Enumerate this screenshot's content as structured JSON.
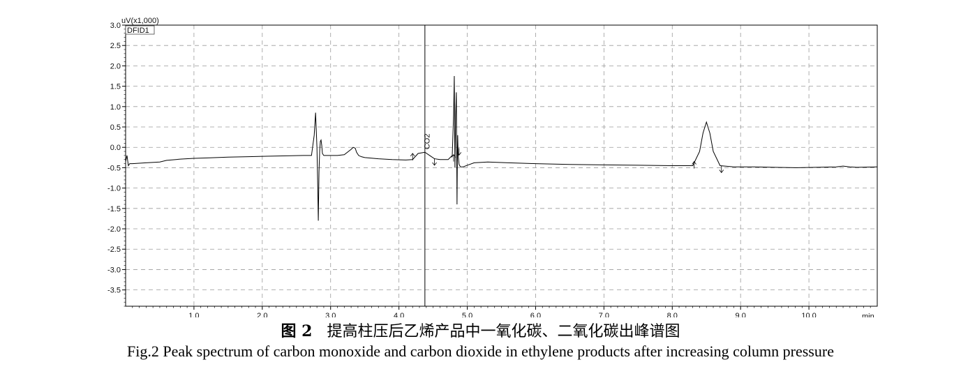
{
  "chart_data": {
    "type": "line",
    "y_unit_label": "uV(x1,000)",
    "x_unit_label": "min",
    "channel_label": "DFID1",
    "xlim": [
      0,
      11
    ],
    "ylim": [
      -3.9,
      3.0
    ],
    "x_ticks": [
      1.0,
      2.0,
      3.0,
      4.0,
      5.0,
      6.0,
      7.0,
      8.0,
      9.0,
      10.0
    ],
    "x_tick_labels": [
      "1.0",
      "2.0",
      "3.0",
      "4.0",
      "5.0",
      "6.0",
      "7.0",
      "8.0",
      "9.0",
      "10.0"
    ],
    "y_ticks": [
      3.0,
      2.5,
      2.0,
      1.5,
      1.0,
      0.5,
      0.0,
      -0.5,
      -1.0,
      -1.5,
      -2.0,
      -2.5,
      -3.0,
      -3.5
    ],
    "y_tick_labels": [
      "3.0",
      "2.5",
      "2.0",
      "1.5",
      "1.0",
      "0.5",
      "0.0",
      "-0.5",
      "-1.0",
      "-1.5",
      "-2.0",
      "-2.5",
      "-3.0",
      "-3.5"
    ],
    "grid": true,
    "vertical_marker_x": 4.38,
    "annotations": [
      {
        "text": "CO2",
        "x": 4.45,
        "y": -0.05
      }
    ],
    "integration_markers": [
      {
        "x": 4.2,
        "y": -0.32,
        "dir": "up"
      },
      {
        "x": 4.52,
        "y": -0.27,
        "dir": "down"
      },
      {
        "x": 4.8,
        "y": -0.35,
        "dir": "up"
      },
      {
        "x": 4.88,
        "y": -0.02,
        "dir": "down"
      },
      {
        "x": 8.32,
        "y": -0.52,
        "dir": "up"
      },
      {
        "x": 8.72,
        "y": -0.45,
        "dir": "down"
      }
    ],
    "series": [
      {
        "values_x": [
          0.0,
          0.02,
          0.04,
          0.06,
          0.1,
          0.3,
          0.5,
          0.6,
          0.8,
          1.0,
          1.2,
          1.5,
          1.8,
          2.0,
          2.3,
          2.6,
          2.72,
          2.76,
          2.78,
          2.8,
          2.81,
          2.82,
          2.83,
          2.84,
          2.85,
          2.86,
          2.87,
          2.88,
          2.9,
          2.95,
          3.0,
          3.1,
          3.2,
          3.3,
          3.33,
          3.36,
          3.38,
          3.41,
          3.45,
          3.5,
          3.7,
          3.9,
          4.1,
          4.2,
          4.28,
          4.38,
          4.45,
          4.52,
          4.6,
          4.72,
          4.78,
          4.8,
          4.81,
          4.815,
          4.82,
          4.83,
          4.84,
          4.85,
          4.855,
          4.86,
          4.865,
          4.87,
          4.88,
          4.9,
          4.94,
          5.0,
          5.1,
          5.3,
          5.6,
          6.0,
          6.5,
          7.0,
          7.5,
          8.0,
          8.3,
          8.4,
          8.45,
          8.5,
          8.55,
          8.6,
          8.7,
          8.9,
          9.2,
          9.5,
          9.8,
          10.1,
          10.4,
          10.5,
          10.6,
          10.7,
          11.0
        ],
        "values_y": [
          -0.35,
          -0.2,
          -0.45,
          -0.4,
          -0.4,
          -0.38,
          -0.36,
          -0.32,
          -0.29,
          -0.27,
          -0.26,
          -0.24,
          -0.23,
          -0.22,
          -0.21,
          -0.2,
          -0.2,
          0.3,
          0.85,
          0.0,
          -0.8,
          -1.8,
          -0.6,
          -0.1,
          0.15,
          0.18,
          0.05,
          -0.15,
          -0.2,
          -0.2,
          -0.2,
          -0.2,
          -0.18,
          -0.05,
          0.0,
          -0.02,
          -0.12,
          -0.2,
          -0.23,
          -0.25,
          -0.28,
          -0.3,
          -0.31,
          -0.3,
          -0.15,
          -0.12,
          -0.2,
          -0.28,
          -0.3,
          -0.3,
          -0.2,
          0.8,
          1.75,
          0.5,
          -0.5,
          0.8,
          1.35,
          -1.4,
          -0.2,
          0.3,
          -0.1,
          -0.25,
          -0.42,
          -0.48,
          -0.48,
          -0.44,
          -0.38,
          -0.36,
          -0.38,
          -0.4,
          -0.42,
          -0.43,
          -0.44,
          -0.45,
          -0.45,
          -0.1,
          0.35,
          0.62,
          0.35,
          -0.1,
          -0.45,
          -0.48,
          -0.48,
          -0.49,
          -0.5,
          -0.49,
          -0.48,
          -0.46,
          -0.48,
          -0.49,
          -0.48
        ]
      }
    ]
  },
  "caption": {
    "cn_fig_num": "图 2",
    "cn_title": "提高柱压后乙烯产品中一氧化碳、二氧化碳出峰谱图",
    "en": "Fig.2    Peak spectrum of carbon monoxide and carbon dioxide in ethylene products after increasing column pressure"
  }
}
